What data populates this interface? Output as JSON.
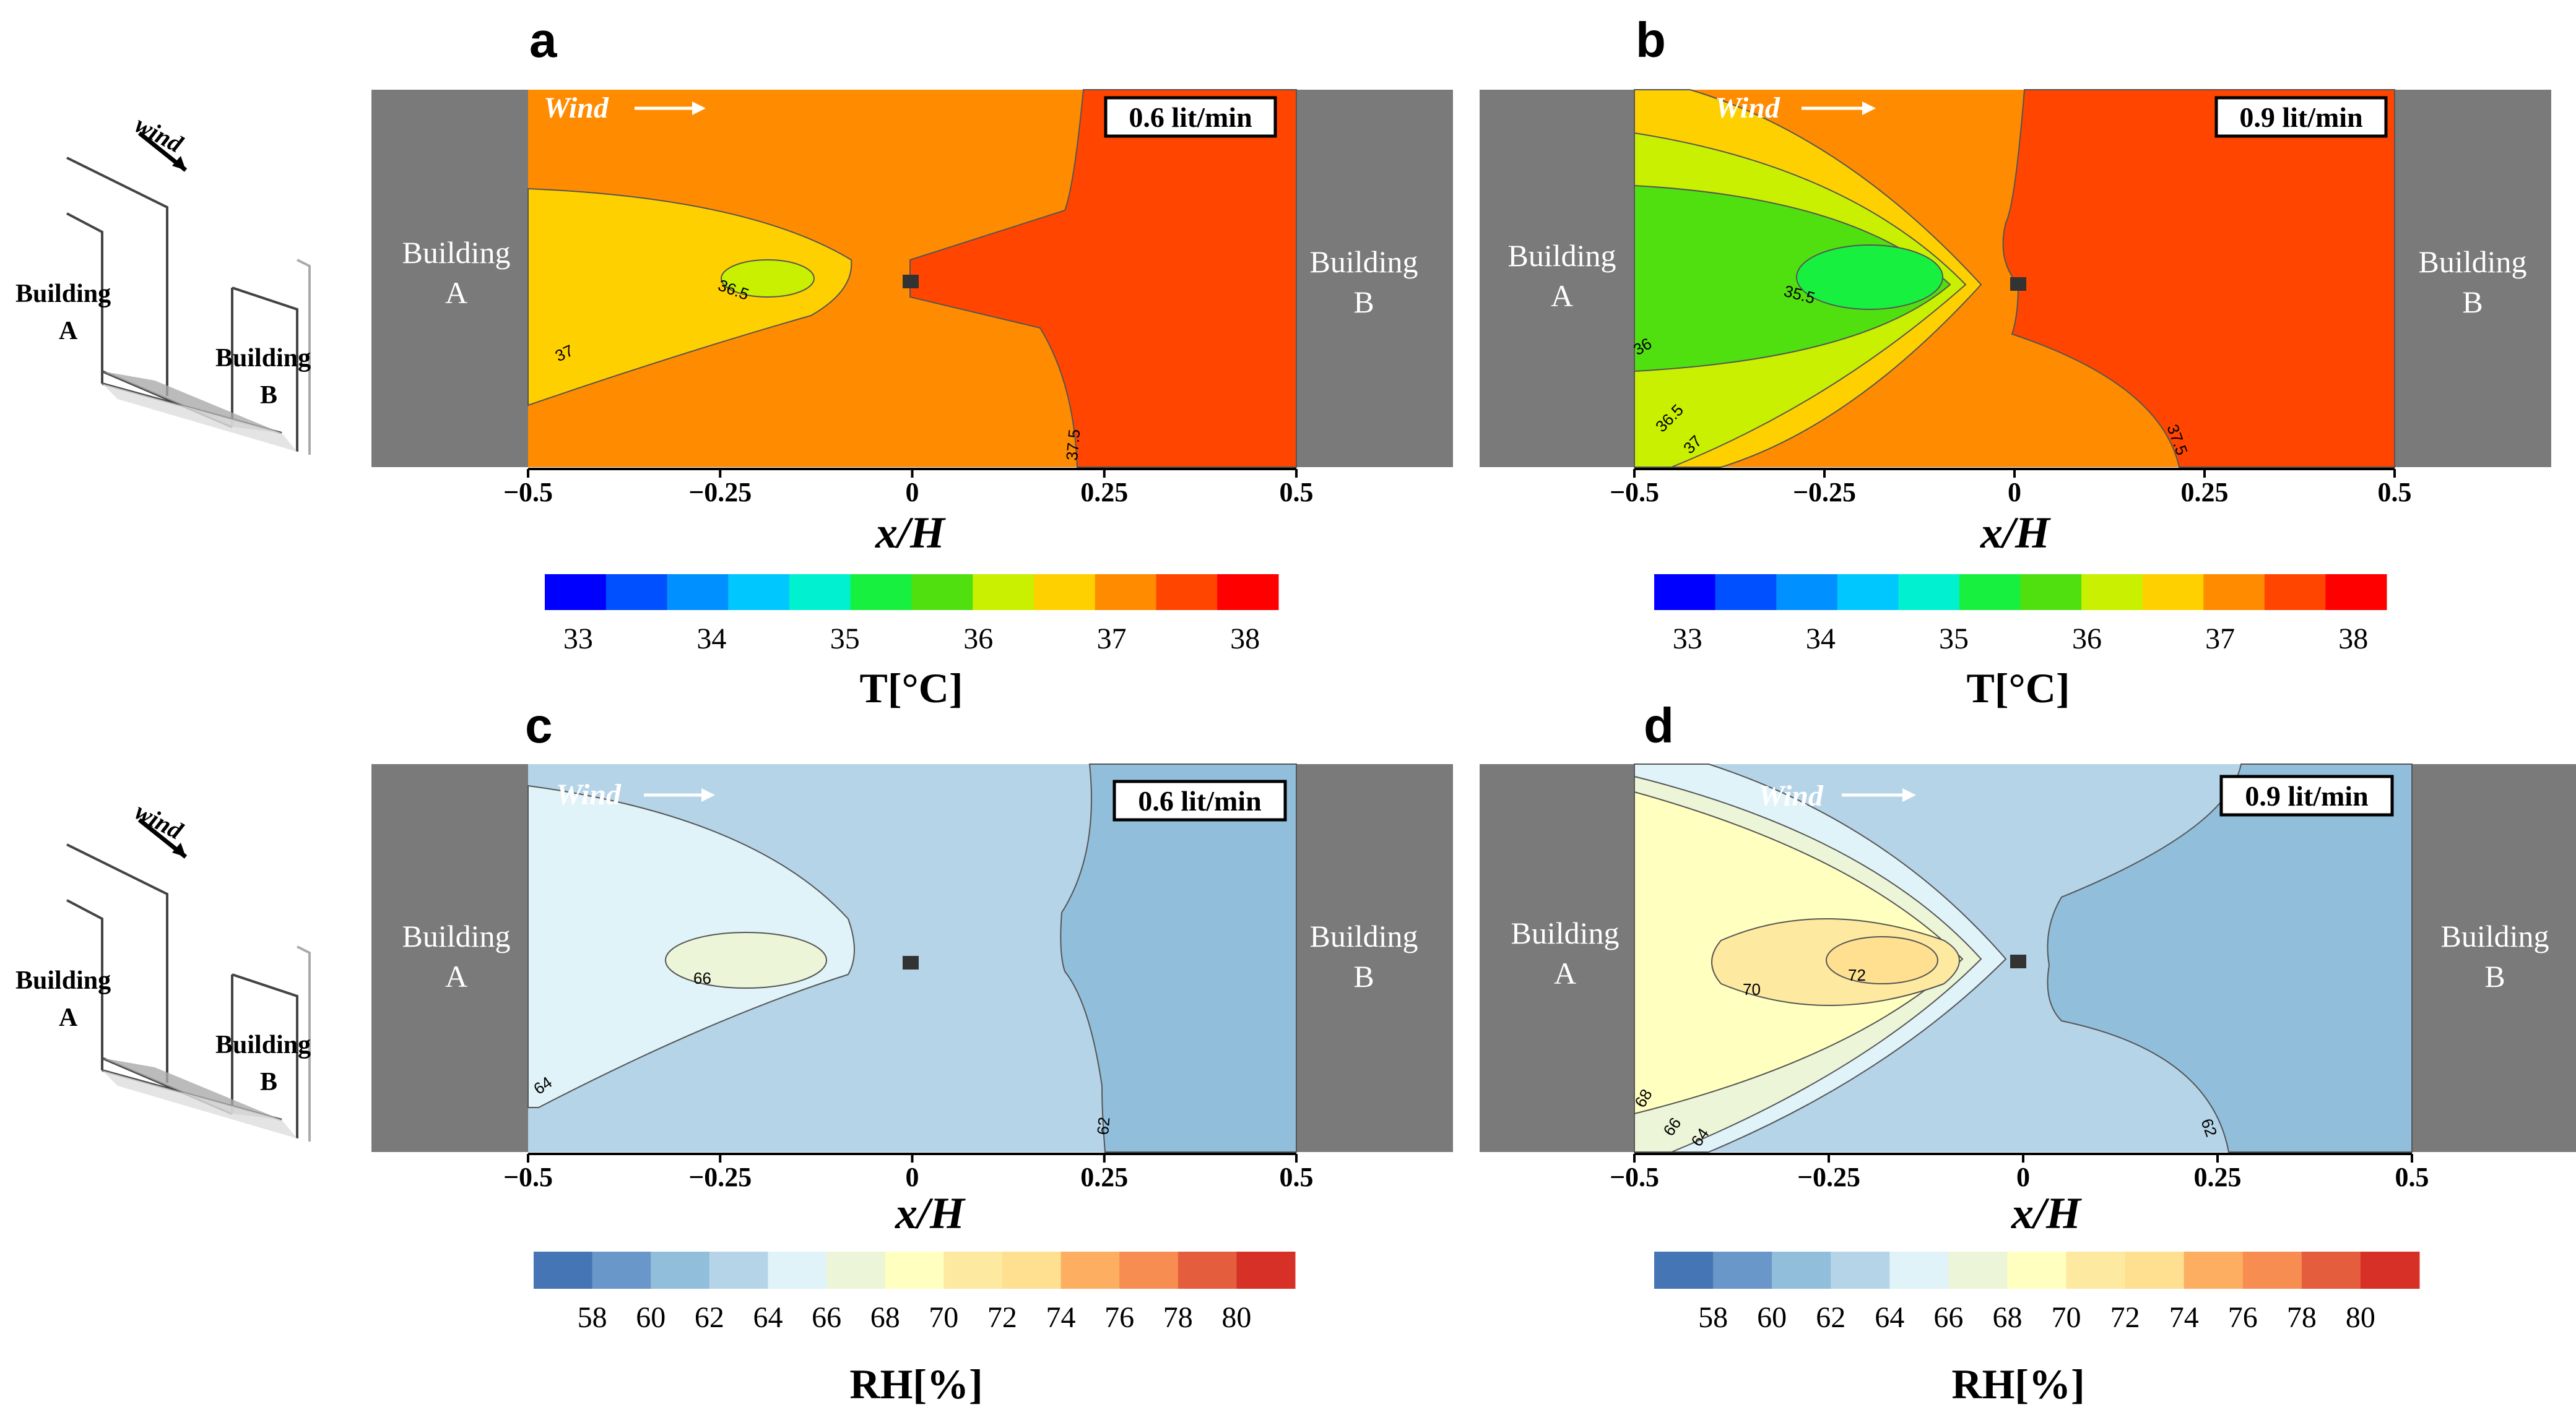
{
  "colors": {
    "building": "#7a7a7a",
    "temp_scale": [
      "#0000ff",
      "#0050ff",
      "#0090ff",
      "#00c8ff",
      "#00f0d0",
      "#18f040",
      "#50e010",
      "#c8f000",
      "#ffd000",
      "#ff8c00",
      "#ff4500",
      "#ff0000"
    ],
    "rh_scale": [
      "#4575b4",
      "#6a97ca",
      "#91bfdb",
      "#b5d4e8",
      "#e0f3f8",
      "#edf5d8",
      "#ffffbf",
      "#fee9a0",
      "#fee090",
      "#fdae61",
      "#f88d52",
      "#e45d3c",
      "#d73027"
    ]
  },
  "sketch": {
    "wind": "wind",
    "building_a": [
      "Building",
      "A"
    ],
    "building_b": [
      "Building",
      "B"
    ]
  },
  "chart_data": [
    {
      "type": "contour",
      "panel": "a",
      "title": "0.6 lit/min",
      "wind_label": "Wind",
      "building_left": [
        "Building",
        "A"
      ],
      "building_right": [
        "Building",
        "B"
      ],
      "xlabel": "x/H",
      "xlim": [
        -0.5,
        0.5
      ],
      "xticks": [
        "−0.5",
        "−0.25",
        "0",
        "0.25",
        "0.5"
      ],
      "xtick_values": [
        -0.5,
        -0.25,
        0,
        0.25,
        0.5
      ],
      "colorbar": {
        "label": "T[°C]",
        "ticks": [
          "33",
          "34",
          "35",
          "36",
          "37",
          "38"
        ],
        "range": [
          32.75,
          38.25
        ],
        "step": 0.5,
        "scale": "temp"
      },
      "contour_labels": [
        "36.5",
        "37",
        "37.5"
      ],
      "min_value": 36.5,
      "max_value": 37.75
    },
    {
      "type": "contour",
      "panel": "b",
      "title": "0.9 lit/min",
      "wind_label": "Wind",
      "building_left": [
        "Building",
        "A"
      ],
      "building_right": [
        "Building",
        "B"
      ],
      "xlabel": "x/H",
      "xlim": [
        -0.5,
        0.5
      ],
      "xticks": [
        "−0.5",
        "−0.25",
        "0",
        "0.25",
        "0.5"
      ],
      "xtick_values": [
        -0.5,
        -0.25,
        0,
        0.25,
        0.5
      ],
      "colorbar": {
        "label": "T[°C]",
        "ticks": [
          "33",
          "34",
          "35",
          "36",
          "37",
          "38"
        ],
        "range": [
          32.75,
          38.25
        ],
        "step": 0.5,
        "scale": "temp"
      },
      "contour_labels": [
        "35.5",
        "36",
        "36.5",
        "37",
        "37.5"
      ],
      "min_value": 35.5,
      "max_value": 37.75
    },
    {
      "type": "contour",
      "panel": "c",
      "title": "0.6 lit/min",
      "wind_label": "Wind",
      "building_left": [
        "Building",
        "A"
      ],
      "building_right": [
        "Building",
        "B"
      ],
      "xlabel": "x/H",
      "xlim": [
        -0.5,
        0.5
      ],
      "xticks": [
        "−0.5",
        "−0.25",
        "0",
        "0.25",
        "0.5"
      ],
      "xtick_values": [
        -0.5,
        -0.25,
        0,
        0.25,
        0.5
      ],
      "colorbar": {
        "label": "RH[%]",
        "ticks": [
          "58",
          "60",
          "62",
          "64",
          "66",
          "68",
          "70",
          "72",
          "74",
          "76",
          "78",
          "80"
        ],
        "range": [
          56,
          82
        ],
        "step": 2,
        "scale": "rh"
      },
      "contour_labels": [
        "66",
        "64",
        "62"
      ],
      "min_value": 61,
      "max_value": 67
    },
    {
      "type": "contour",
      "panel": "d",
      "title": "0.9 lit/min",
      "wind_label": "Wind",
      "building_left": [
        "Building",
        "A"
      ],
      "building_right": [
        "Building",
        "B"
      ],
      "xlabel": "x/H",
      "xlim": [
        -0.5,
        0.5
      ],
      "xticks": [
        "−0.5",
        "−0.25",
        "0",
        "0.25",
        "0.5"
      ],
      "xtick_values": [
        -0.5,
        -0.25,
        0,
        0.25,
        0.5
      ],
      "colorbar": {
        "label": "RH[%]",
        "ticks": [
          "58",
          "60",
          "62",
          "64",
          "66",
          "68",
          "70",
          "72",
          "74",
          "76",
          "78",
          "80"
        ],
        "range": [
          56,
          82
        ],
        "step": 2,
        "scale": "rh"
      },
      "contour_labels": [
        "70",
        "72",
        "68",
        "66",
        "64",
        "62"
      ],
      "min_value": 61,
      "max_value": 73
    }
  ]
}
